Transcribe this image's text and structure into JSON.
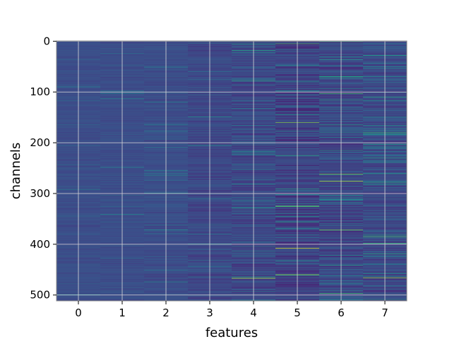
{
  "chart_data": {
    "type": "heatmap",
    "title": "",
    "xlabel": "features",
    "ylabel": "channels",
    "n_rows": 512,
    "n_cols": 8,
    "x_ticks": [
      "0",
      "1",
      "2",
      "3",
      "4",
      "5",
      "6",
      "7"
    ],
    "y_ticks": [
      0,
      100,
      200,
      300,
      400,
      500
    ],
    "y_tick_labels": [
      "0",
      "100",
      "200",
      "300",
      "400",
      "500"
    ],
    "xlim": [
      -0.5,
      7.5
    ],
    "ylim": [
      511.5,
      -0.5
    ],
    "y_inverted": true,
    "grid": true,
    "colormap": "viridis",
    "background_color": "#3b4a8c",
    "notable_bright_cells": [
      {
        "row": 5,
        "col": 5,
        "level": 0.7
      },
      {
        "row": 18,
        "col": 4,
        "level": 0.6
      },
      {
        "row": 70,
        "col": 6,
        "level": 0.55
      },
      {
        "row": 78,
        "col": 4,
        "level": 0.6
      },
      {
        "row": 103,
        "col": 6,
        "level": 0.7
      },
      {
        "row": 110,
        "col": 7,
        "level": 0.6
      },
      {
        "row": 160,
        "col": 5,
        "level": 0.8
      },
      {
        "row": 180,
        "col": 7,
        "level": 0.65
      },
      {
        "row": 225,
        "col": 5,
        "level": 0.6
      },
      {
        "row": 262,
        "col": 6,
        "level": 0.8
      },
      {
        "row": 276,
        "col": 6,
        "level": 0.9
      },
      {
        "row": 278,
        "col": 7,
        "level": 0.6
      },
      {
        "row": 325,
        "col": 5,
        "level": 0.8
      },
      {
        "row": 372,
        "col": 6,
        "level": 0.8
      },
      {
        "row": 385,
        "col": 7,
        "level": 0.7
      },
      {
        "row": 408,
        "col": 5,
        "level": 0.95
      },
      {
        "row": 460,
        "col": 5,
        "level": 0.85
      },
      {
        "row": 467,
        "col": 4,
        "level": 0.9
      },
      {
        "row": 466,
        "col": 7,
        "level": 0.85
      },
      {
        "row": 497,
        "col": 6,
        "level": 0.7
      },
      {
        "row": 90,
        "col": 0,
        "level": 0.45
      },
      {
        "row": 372,
        "col": 2,
        "level": 0.5
      },
      {
        "row": 265,
        "col": 2,
        "level": 0.45
      }
    ]
  }
}
